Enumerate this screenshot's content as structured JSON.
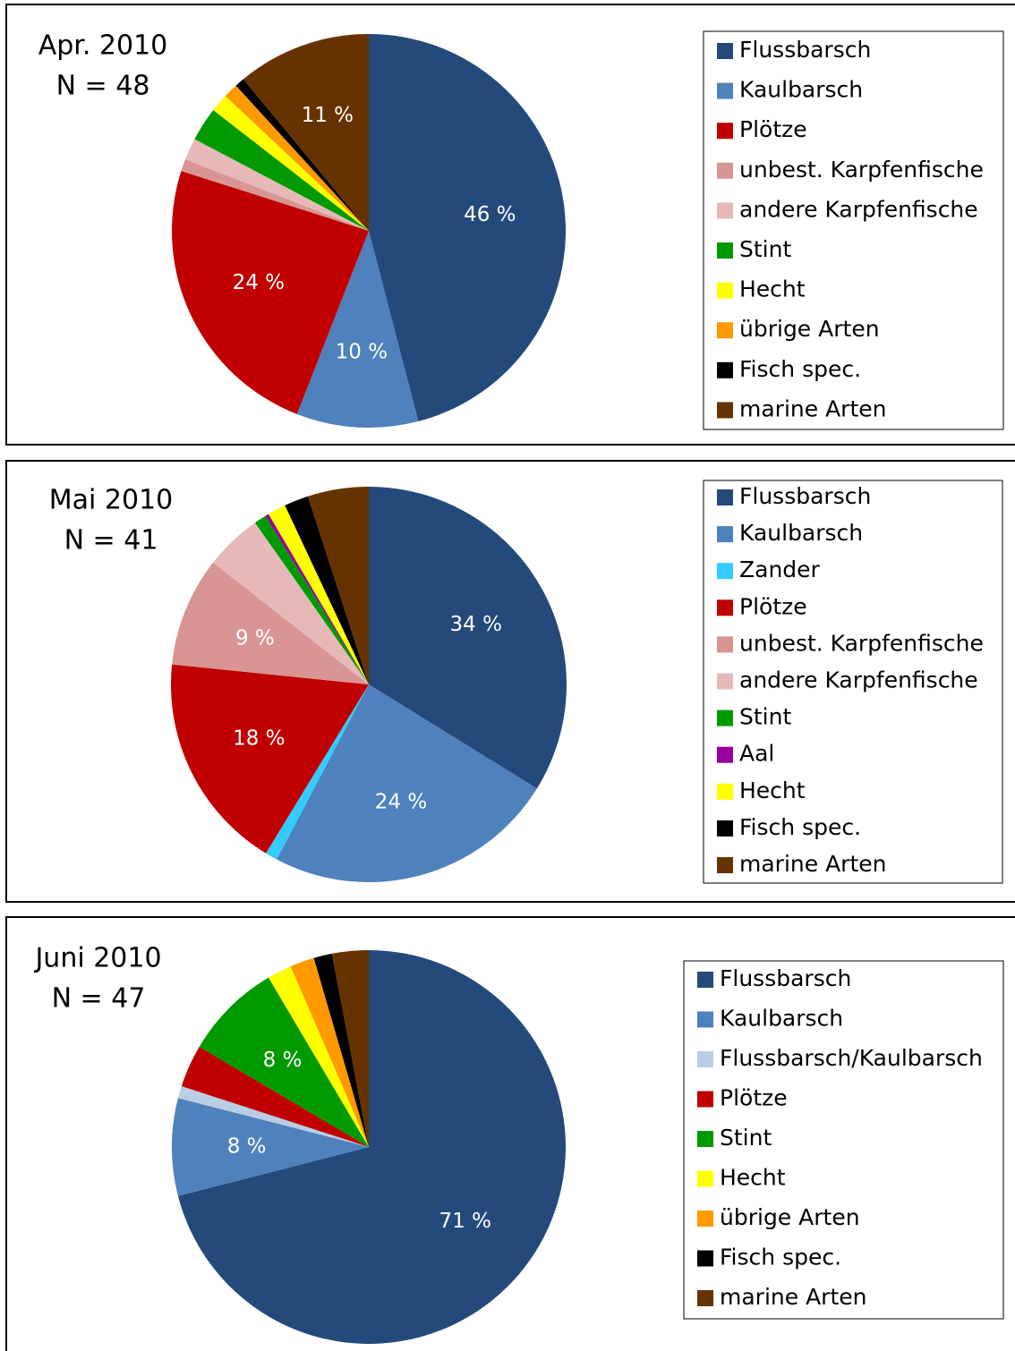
{
  "chart_data": [
    {
      "type": "pie",
      "title": "Apr. 2010",
      "subtitle": "N = 48",
      "categories": [
        "Flussbarsch",
        "Kaulbarsch",
        "Plötze",
        "unbest. Karpfenfische",
        "andere Karpfenfische",
        "Stint",
        "Hecht",
        "übrige Arten",
        "Fisch spec.",
        "marine Arten"
      ],
      "values": [
        46,
        10,
        24,
        1,
        1.8,
        2.8,
        1.5,
        1.2,
        0.8,
        11
      ],
      "value_labels": [
        "46 %",
        "10 %",
        "24 %",
        null,
        null,
        null,
        null,
        null,
        null,
        "11 %"
      ],
      "colors": [
        "#244a7b",
        "#4f81bd",
        "#c00000",
        "#d99594",
        "#e6b9b8",
        "#009a00",
        "#ffff00",
        "#ff9900",
        "#000000",
        "#663300"
      ],
      "legend": "right"
    },
    {
      "type": "pie",
      "title": "Mai 2010",
      "subtitle": "N = 41",
      "categories": [
        "Flussbarsch",
        "Kaulbarsch",
        "Zander",
        "Plötze",
        "unbest. Karpfenfische",
        "andere Karpfenfische",
        "Stint",
        "Aal",
        "Hecht",
        "Fisch spec.",
        "marine Arten"
      ],
      "values": [
        34,
        24,
        1,
        18,
        9,
        4.7,
        1,
        0.3,
        1.5,
        2,
        5
      ],
      "value_labels": [
        "34 %",
        "24 %",
        null,
        "18 %",
        "9 %",
        null,
        null,
        null,
        null,
        null,
        null
      ],
      "colors": [
        "#244a7b",
        "#4f81bd",
        "#33ccff",
        "#c00000",
        "#d99594",
        "#e6b9b8",
        "#009a00",
        "#990099",
        "#ffff00",
        "#000000",
        "#663300"
      ],
      "legend": "right"
    },
    {
      "type": "pie",
      "title": "Juni 2010",
      "subtitle": "N = 47",
      "categories": [
        "Flussbarsch",
        "Kaulbarsch",
        "Flussbarsch/Kaulbarsch",
        "Plötze",
        "Stint",
        "Hecht",
        "übrige Arten",
        "Fisch spec.",
        "marine Arten"
      ],
      "values": [
        71,
        8,
        1,
        3.5,
        8,
        2,
        2,
        1.5,
        3
      ],
      "value_labels": [
        "71 %",
        "8 %",
        null,
        null,
        "8 %",
        null,
        null,
        null,
        null
      ],
      "colors": [
        "#244a7b",
        "#4f81bd",
        "#b9cde5",
        "#c00000",
        "#009a00",
        "#ffff00",
        "#ff9900",
        "#000000",
        "#663300"
      ],
      "legend": "right"
    }
  ]
}
